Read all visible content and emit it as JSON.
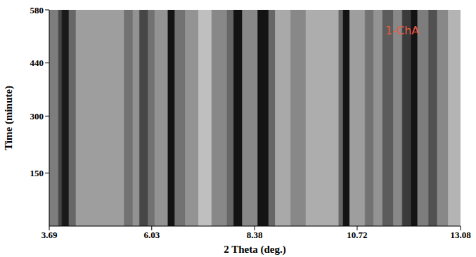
{
  "chart_data": {
    "type": "heatmap",
    "x_label": "2 Theta (deg.)",
    "y_label": "Time (minute)",
    "annotations": [
      {
        "text": "1-ChA",
        "color": "#f05a46"
      }
    ],
    "xlim": [
      3.69,
      13.08
    ],
    "xticks": [
      3.69,
      6.03,
      8.38,
      10.72,
      13.08
    ],
    "ylim": [
      10,
      580
    ],
    "yticks": [
      150,
      300,
      440,
      580
    ],
    "grid": false,
    "bins": [
      3.69,
      3.9,
      3.98,
      4.14,
      4.3,
      5.4,
      5.6,
      5.75,
      5.95,
      6.1,
      6.4,
      6.56,
      6.8,
      7.1,
      7.4,
      7.75,
      7.9,
      8.1,
      8.45,
      8.7,
      8.85,
      9.2,
      9.55,
      10.3,
      10.4,
      10.55,
      10.9,
      11.1,
      11.3,
      11.55,
      11.75,
      11.95,
      12.1,
      12.35,
      12.55,
      12.8,
      13.08
    ],
    "values": [
      50,
      75,
      95,
      60,
      35,
      55,
      40,
      75,
      55,
      40,
      98,
      55,
      40,
      20,
      45,
      60,
      98,
      45,
      98,
      60,
      30,
      45,
      28,
      60,
      98,
      35,
      55,
      40,
      65,
      45,
      80,
      98,
      50,
      70,
      45,
      25
    ],
    "color_range": [
      0,
      100
    ]
  }
}
